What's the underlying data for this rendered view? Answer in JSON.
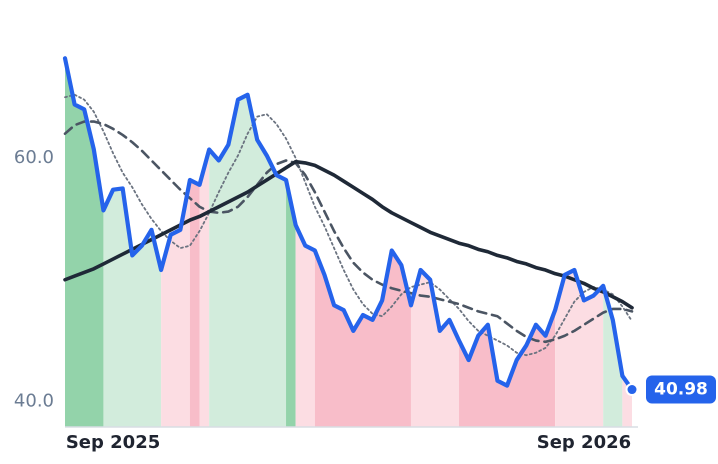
{
  "chart_data": {
    "type": "line",
    "categories": [
      null,
      null,
      null,
      null,
      null,
      "Sep 2025",
      null,
      null,
      null,
      null,
      null,
      null,
      null,
      null,
      null,
      null,
      null,
      null,
      null,
      null,
      null,
      null,
      null,
      null,
      null,
      null,
      null,
      null,
      null,
      null,
      null,
      null,
      null,
      null,
      null,
      null,
      null,
      null,
      null,
      null,
      null,
      null,
      null,
      null,
      null,
      null,
      null,
      null,
      null,
      null,
      null,
      null,
      null,
      null,
      "Sep 2026",
      null,
      null,
      null,
      null,
      null
    ],
    "series": [
      {
        "color": "#2563eb",
        "values": [
          68.2,
          64.4,
          64.0,
          60.7,
          55.7,
          57.4,
          57.5,
          52.0,
          52.8,
          54.1,
          50.8,
          53.7,
          54.1,
          58.2,
          57.8,
          60.7,
          59.8,
          61.1,
          64.8,
          65.2,
          61.5,
          60.2,
          58.6,
          58.2,
          54.5,
          52.8,
          52.4,
          50.4,
          47.9,
          47.5,
          45.8,
          47.1,
          46.7,
          48.3,
          52.4,
          51.2,
          47.9,
          50.8,
          50.0,
          45.8,
          46.7,
          45.0,
          43.4,
          45.4,
          46.3,
          41.7,
          41.3,
          43.4,
          44.6,
          46.3,
          45.4,
          47.5,
          50.4,
          50.8,
          48.3,
          48.7,
          49.5,
          46.7,
          42.1,
          40.98
        ],
        "value_labels": [
          null,
          null,
          null,
          null,
          null,
          null,
          null,
          null,
          null,
          null,
          null,
          null,
          null,
          null,
          null,
          null,
          null,
          null,
          null,
          null,
          null,
          null,
          null,
          null,
          null,
          null,
          null,
          null,
          null,
          null,
          null,
          null,
          null,
          null,
          null,
          null,
          null,
          null,
          null,
          null,
          null,
          null,
          null,
          null,
          null,
          null,
          null,
          null,
          null,
          null,
          null,
          null,
          null,
          null,
          null,
          null,
          null,
          null,
          null,
          "40.98"
        ]
      },
      {
        "color": "#6b7380",
        "dash": "dotted",
        "values": [
          65.0,
          65.2,
          64.8,
          63.8,
          62.2,
          60.4,
          58.8,
          57.6,
          56.2,
          55.0,
          54.0,
          53.2,
          52.6,
          52.8,
          54.0,
          55.5,
          57.2,
          58.8,
          60.2,
          62.0,
          63.4,
          63.6,
          62.8,
          61.6,
          60.0,
          58.0,
          56.0,
          54.4,
          52.6,
          50.8,
          49.2,
          48.0,
          47.2,
          47.0,
          47.8,
          48.8,
          49.4,
          49.6,
          49.8,
          49.2,
          48.4,
          47.6,
          46.6,
          45.8,
          45.4,
          45.0,
          44.6,
          44.0,
          43.8,
          44.0,
          44.4,
          45.4,
          46.8,
          48.2,
          49.0,
          49.4,
          49.2,
          48.8,
          47.8,
          46.6
        ]
      },
      {
        "color": "#4b5563",
        "dash": "dashed",
        "values": [
          62.0,
          62.7,
          63.0,
          63.0,
          62.8,
          62.4,
          61.9,
          61.3,
          60.6,
          59.8,
          59.0,
          58.2,
          57.4,
          56.7,
          56.0,
          55.6,
          55.5,
          55.6,
          56.0,
          56.8,
          57.8,
          58.8,
          59.5,
          59.8,
          59.6,
          58.6,
          57.2,
          55.6,
          54.0,
          52.6,
          51.4,
          50.6,
          50.0,
          49.6,
          49.3,
          49.1,
          48.9,
          48.7,
          48.6,
          48.4,
          48.2,
          48.0,
          47.7,
          47.4,
          47.2,
          47.0,
          46.4,
          45.8,
          45.3,
          45.0,
          44.9,
          45.1,
          45.4,
          45.8,
          46.3,
          46.8,
          47.3,
          47.6,
          47.6,
          47.4
        ]
      },
      {
        "color": "#1f2937",
        "dash": "solid",
        "values": [
          50.0,
          50.3,
          50.6,
          50.9,
          51.3,
          51.7,
          52.1,
          52.5,
          52.9,
          53.3,
          53.7,
          54.1,
          54.5,
          54.9,
          55.2,
          55.6,
          56.0,
          56.4,
          56.8,
          57.2,
          57.7,
          58.2,
          58.7,
          59.2,
          59.7,
          59.6,
          59.4,
          59.0,
          58.6,
          58.1,
          57.6,
          57.1,
          56.6,
          56.0,
          55.5,
          55.1,
          54.7,
          54.3,
          53.9,
          53.6,
          53.3,
          53.0,
          52.8,
          52.5,
          52.3,
          52.0,
          51.8,
          51.5,
          51.3,
          51.0,
          50.8,
          50.5,
          50.3,
          50.0,
          49.7,
          49.3,
          49.0,
          48.6,
          48.2,
          47.7
        ]
      }
    ],
    "shading": [
      {
        "from": 0,
        "to": 4,
        "color": "#93d3aa"
      },
      {
        "from": 4,
        "to": 10,
        "color": "#d2ecdc"
      },
      {
        "from": 10,
        "to": 13,
        "color": "#fcdde3"
      },
      {
        "from": 13,
        "to": 14,
        "color": "#f8bdc9"
      },
      {
        "from": 14,
        "to": 15,
        "color": "#fcdde3"
      },
      {
        "from": 15,
        "to": 23,
        "color": "#d2ecdc"
      },
      {
        "from": 23,
        "to": 24,
        "color": "#93d3aa"
      },
      {
        "from": 24,
        "to": 26,
        "color": "#fcdde3"
      },
      {
        "from": 26,
        "to": 36,
        "color": "#f8bdc9"
      },
      {
        "from": 36,
        "to": 41,
        "color": "#fcdde3"
      },
      {
        "from": 41,
        "to": 51,
        "color": "#f8bdc9"
      },
      {
        "from": 51,
        "to": 56,
        "color": "#fcdde3"
      },
      {
        "from": 56,
        "to": 58,
        "color": "#d2ecdc"
      },
      {
        "from": 58,
        "to": 59,
        "color": "#fcdde3"
      }
    ],
    "ylim": [
      37.9,
      69.7
    ],
    "yticks": [
      {
        "value": 40,
        "label": "40.0"
      },
      {
        "value": 60,
        "label": "60.0"
      }
    ],
    "grid": false
  }
}
